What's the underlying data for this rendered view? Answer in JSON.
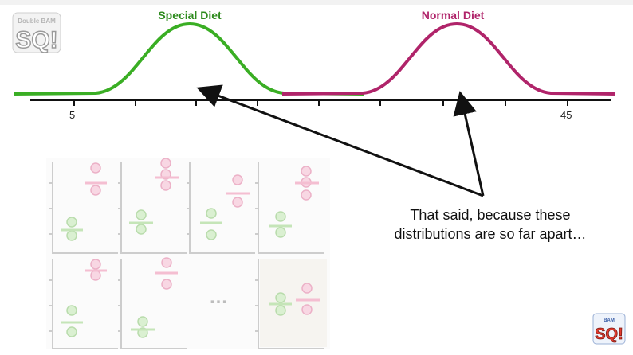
{
  "title_special": "Special Diet",
  "title_normal": "Normal Diet",
  "axis": {
    "tick_left": "5",
    "tick_right": "45"
  },
  "caption": {
    "line1": "That said, because these",
    "line2": "distributions are so far apart…"
  },
  "ellipsis": "…",
  "colors": {
    "special": "#3aae24",
    "normal": "#b0246a",
    "special_faded": "#cfe9c6",
    "normal_faded": "#f5c6d8",
    "axis": "#111111"
  },
  "logo": {
    "text_small": "Double BAM!!",
    "text_big": "SQ!"
  }
}
